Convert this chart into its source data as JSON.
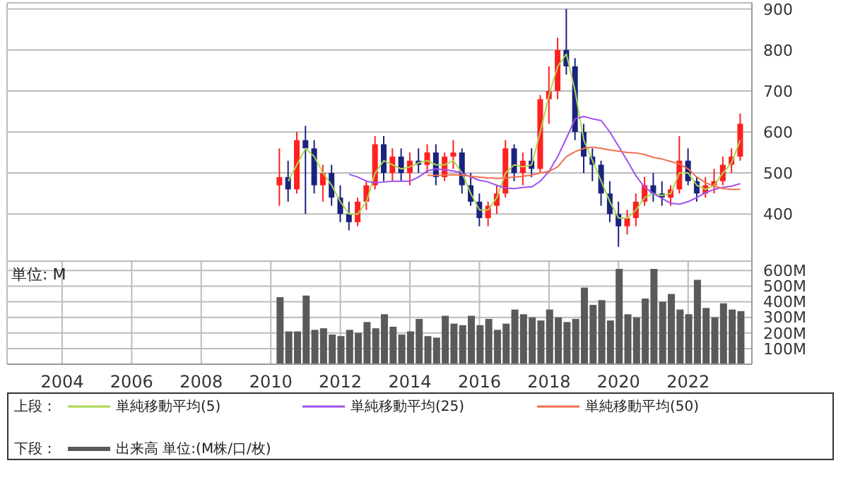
{
  "chart_data": [
    {
      "type": "candlestick",
      "legend": "bottom",
      "legend_title": "上段：",
      "grid": true,
      "tick_labels": "y",
      "x": [
        "2010-04",
        "2010-07",
        "2010-10",
        "2011-01",
        "2011-04",
        "2011-07",
        "2011-10",
        "2012-01",
        "2012-04",
        "2012-07",
        "2012-10",
        "2013-01",
        "2013-04",
        "2013-07",
        "2013-10",
        "2014-01",
        "2014-04",
        "2014-07",
        "2014-10",
        "2015-01",
        "2015-04",
        "2015-07",
        "2015-10",
        "2016-01",
        "2016-04",
        "2016-07",
        "2016-10",
        "2017-01",
        "2017-04",
        "2017-07",
        "2017-10",
        "2018-01",
        "2018-04",
        "2018-07",
        "2018-10",
        "2019-01",
        "2019-04",
        "2019-07",
        "2019-10",
        "2020-01",
        "2020-04",
        "2020-07",
        "2020-10",
        "2021-01",
        "2021-04",
        "2021-07",
        "2021-10",
        "2022-01",
        "2022-04",
        "2022-07",
        "2022-10",
        "2023-01",
        "2023-04",
        "2023-07"
      ],
      "ohlc": [
        [
          470,
          560,
          420,
          490
        ],
        [
          490,
          530,
          430,
          460
        ],
        [
          460,
          600,
          450,
          580
        ],
        [
          580,
          615,
          400,
          560
        ],
        [
          560,
          580,
          450,
          470
        ],
        [
          470,
          520,
          430,
          500
        ],
        [
          500,
          520,
          420,
          440
        ],
        [
          440,
          470,
          380,
          400
        ],
        [
          400,
          430,
          360,
          380
        ],
        [
          380,
          440,
          370,
          430
        ],
        [
          430,
          480,
          410,
          470
        ],
        [
          470,
          590,
          460,
          570
        ],
        [
          570,
          590,
          480,
          500
        ],
        [
          500,
          560,
          480,
          540
        ],
        [
          540,
          560,
          480,
          500
        ],
        [
          500,
          550,
          470,
          530
        ],
        [
          530,
          560,
          500,
          520
        ],
        [
          520,
          570,
          500,
          550
        ],
        [
          550,
          570,
          470,
          490
        ],
        [
          490,
          550,
          480,
          540
        ],
        [
          540,
          580,
          510,
          550
        ],
        [
          550,
          560,
          450,
          470
        ],
        [
          470,
          500,
          420,
          430
        ],
        [
          430,
          450,
          370,
          390
        ],
        [
          390,
          430,
          370,
          420
        ],
        [
          420,
          470,
          400,
          450
        ],
        [
          450,
          580,
          440,
          560
        ],
        [
          560,
          570,
          480,
          500
        ],
        [
          500,
          550,
          470,
          530
        ],
        [
          530,
          560,
          490,
          510
        ],
        [
          510,
          690,
          500,
          680
        ],
        [
          680,
          760,
          620,
          700
        ],
        [
          700,
          830,
          680,
          800
        ],
        [
          800,
          900,
          740,
          760
        ],
        [
          760,
          780,
          580,
          600
        ],
        [
          600,
          620,
          500,
          540
        ],
        [
          540,
          560,
          480,
          520
        ],
        [
          520,
          530,
          420,
          450
        ],
        [
          450,
          480,
          380,
          400
        ],
        [
          400,
          430,
          320,
          370
        ],
        [
          370,
          410,
          350,
          390
        ],
        [
          390,
          450,
          370,
          430
        ],
        [
          430,
          490,
          420,
          470
        ],
        [
          470,
          500,
          430,
          450
        ],
        [
          450,
          480,
          420,
          440
        ],
        [
          440,
          470,
          420,
          460
        ],
        [
          460,
          590,
          450,
          530
        ],
        [
          530,
          560,
          470,
          480
        ],
        [
          480,
          490,
          430,
          450
        ],
        [
          450,
          490,
          440,
          470
        ],
        [
          470,
          510,
          450,
          480
        ],
        [
          480,
          540,
          470,
          520
        ],
        [
          520,
          560,
          500,
          540
        ],
        [
          540,
          645,
          530,
          620
        ]
      ],
      "series": [
        {
          "name": "単純移動平均(5)",
          "type": "line",
          "color": "#a8d850",
          "values": [
            null,
            480,
            520,
            560,
            540,
            500,
            470,
            430,
            400,
            400,
            430,
            500,
            530,
            520,
            510,
            515,
            525,
            530,
            520,
            520,
            530,
            500,
            450,
            410,
            410,
            440,
            500,
            520,
            515,
            520,
            600,
            690,
            760,
            790,
            700,
            580,
            530,
            480,
            430,
            390,
            390,
            410,
            440,
            450,
            445,
            450,
            500,
            500,
            470,
            460,
            470,
            500,
            525,
            580
          ]
        },
        {
          "name": "単純移動平均(25)",
          "type": "line",
          "color": "#a050f0",
          "values": [
            null,
            null,
            null,
            null,
            null,
            null,
            null,
            null,
            497,
            490,
            480,
            476,
            478,
            480,
            480,
            480,
            490,
            505,
            510,
            508,
            505,
            500,
            490,
            482,
            478,
            470,
            463,
            462,
            465,
            466,
            480,
            504,
            540,
            585,
            632,
            638,
            632,
            628,
            600,
            565,
            530,
            493,
            465,
            450,
            438,
            426,
            424,
            430,
            440,
            452,
            460,
            465,
            468,
            474
          ]
        },
        {
          "name": "単純移動平均(50)",
          "type": "line",
          "color": "#f07050",
          "values": [
            null,
            null,
            null,
            null,
            null,
            null,
            null,
            null,
            null,
            null,
            null,
            null,
            null,
            null,
            null,
            null,
            null,
            494,
            494,
            495,
            496,
            495,
            492,
            490,
            488,
            487,
            488,
            490,
            492,
            495,
            500,
            504,
            515,
            540,
            552,
            560,
            563,
            560,
            556,
            553,
            550,
            549,
            545,
            538,
            534,
            528,
            522,
            510,
            490,
            476,
            468,
            462,
            460,
            460
          ]
        }
      ],
      "xlim": [
        "2002-06",
        "2023-11"
      ],
      "xticks": [
        "2004",
        "2006",
        "2008",
        "2010",
        "2012",
        "2014",
        "2016",
        "2018",
        "2020",
        "2022"
      ],
      "ylim": [
        285,
        915
      ],
      "yticks": [
        400,
        500,
        600,
        700,
        800,
        900
      ]
    },
    {
      "type": "bar",
      "legend": "bottom",
      "legend_title": "下段：",
      "grid": true,
      "ylabel": "単位: M",
      "x": [
        "2010-04",
        "2010-07",
        "2010-10",
        "2011-01",
        "2011-04",
        "2011-07",
        "2011-10",
        "2012-01",
        "2012-04",
        "2012-07",
        "2012-10",
        "2013-01",
        "2013-04",
        "2013-07",
        "2013-10",
        "2014-01",
        "2014-04",
        "2014-07",
        "2014-10",
        "2015-01",
        "2015-04",
        "2015-07",
        "2015-10",
        "2016-01",
        "2016-04",
        "2016-07",
        "2016-10",
        "2017-01",
        "2017-04",
        "2017-07",
        "2017-10",
        "2018-01",
        "2018-04",
        "2018-07",
        "2018-10",
        "2019-01",
        "2019-04",
        "2019-07",
        "2019-10",
        "2020-01",
        "2020-04",
        "2020-07",
        "2020-10",
        "2021-01",
        "2021-04",
        "2021-07",
        "2021-10",
        "2022-01",
        "2022-04",
        "2022-07",
        "2022-10",
        "2023-01",
        "2023-04",
        "2023-07"
      ],
      "series": [
        {
          "name": "出来高 単位:(M株/口/枚)",
          "color": "#5a5a5a",
          "values": [
            430,
            210,
            210,
            440,
            220,
            230,
            190,
            180,
            220,
            200,
            270,
            230,
            320,
            240,
            190,
            210,
            290,
            180,
            170,
            310,
            260,
            250,
            310,
            250,
            290,
            220,
            260,
            350,
            320,
            300,
            280,
            350,
            300,
            270,
            290,
            490,
            380,
            410,
            280,
            610,
            320,
            300,
            420,
            610,
            400,
            450,
            350,
            320,
            540,
            360,
            300,
            390,
            350,
            340
          ]
        }
      ],
      "xlim": [
        "2002-06",
        "2023-11"
      ],
      "xticks": [
        "2004",
        "2006",
        "2008",
        "2010",
        "2012",
        "2014",
        "2016",
        "2018",
        "2020",
        "2022"
      ],
      "ylim": [
        0,
        660
      ],
      "yticks": [
        {
          "value": 100,
          "label": "100M"
        },
        {
          "value": 200,
          "label": "200M"
        },
        {
          "value": 300,
          "label": "300M"
        },
        {
          "value": 400,
          "label": "400M"
        },
        {
          "value": 500,
          "label": "500M"
        },
        {
          "value": 600,
          "label": "600M"
        }
      ]
    }
  ]
}
